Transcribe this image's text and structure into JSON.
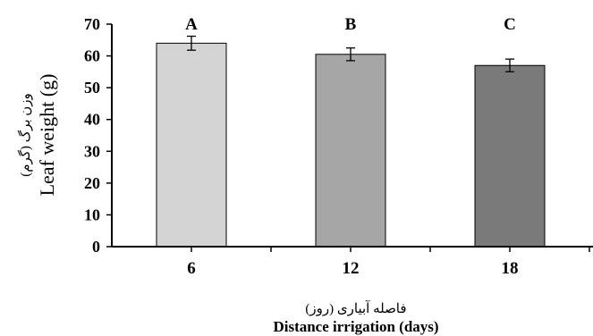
{
  "chart_data": {
    "type": "bar",
    "categories": [
      "6",
      "12",
      "18"
    ],
    "values": [
      64,
      60.5,
      57
    ],
    "errors": [
      2.2,
      2.0,
      2.0
    ],
    "group_letters": [
      "A",
      "B",
      "C"
    ],
    "bar_colors": [
      "#d4d4d4",
      "#a6a6a6",
      "#7a7a7a"
    ],
    "ylim": [
      0,
      70
    ],
    "yticks": [
      "0",
      "10",
      "20",
      "30",
      "40",
      "50",
      "60",
      "70"
    ],
    "ylabel_fa": "وزن برگ (گرم)",
    "ylabel": "Leaf weight (g)",
    "xlabel_fa": "فاصله آبیاری (روز)",
    "xlabel": "Distance irrigation (days)",
    "grid": false,
    "legend": "none"
  }
}
